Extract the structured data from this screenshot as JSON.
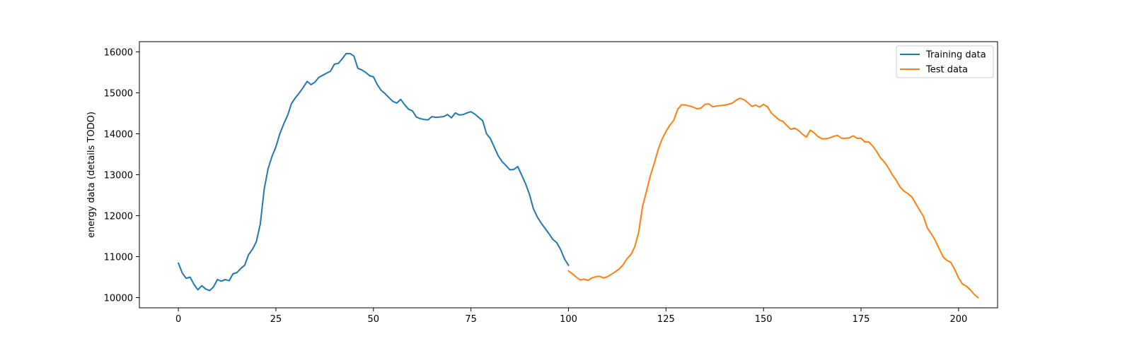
{
  "chart_data": {
    "type": "line",
    "title": "",
    "xlabel": "",
    "ylabel": "energy data (details TODO)",
    "xlim": [
      -10,
      210
    ],
    "ylim": [
      9750,
      16250
    ],
    "x_ticks": [
      0,
      25,
      50,
      75,
      100,
      125,
      150,
      175,
      200
    ],
    "y_ticks": [
      10000,
      11000,
      12000,
      13000,
      14000,
      15000,
      16000
    ],
    "grid": false,
    "legend_position": "top-right",
    "series": [
      {
        "name": "Training data",
        "color": "#1f77b4",
        "x_start": 0,
        "values": [
          10840,
          10600,
          10470,
          10500,
          10320,
          10190,
          10290,
          10210,
          10170,
          10260,
          10440,
          10400,
          10440,
          10410,
          10580,
          10610,
          10710,
          10790,
          11050,
          11180,
          11370,
          11800,
          12650,
          13150,
          13450,
          13680,
          14000,
          14240,
          14450,
          14740,
          14880,
          15000,
          15130,
          15280,
          15200,
          15260,
          15380,
          15430,
          15480,
          15530,
          15700,
          15720,
          15830,
          15960,
          15960,
          15900,
          15600,
          15560,
          15500,
          15420,
          15390,
          15200,
          15060,
          14980,
          14880,
          14790,
          14750,
          14840,
          14710,
          14600,
          14560,
          14410,
          14370,
          14350,
          14340,
          14420,
          14400,
          14410,
          14420,
          14470,
          14390,
          14510,
          14460,
          14470,
          14510,
          14540,
          14480,
          14400,
          14320,
          14000,
          13880,
          13670,
          13460,
          13320,
          13220,
          13120,
          13130,
          13200,
          12990,
          12780,
          12520,
          12170,
          11970,
          11820,
          11690,
          11560,
          11420,
          11340,
          11170,
          10940,
          10790
        ]
      },
      {
        "name": "Test data",
        "color": "#ff7f0e",
        "x_start": 100,
        "values": [
          10650,
          10580,
          10500,
          10430,
          10450,
          10420,
          10480,
          10510,
          10520,
          10480,
          10510,
          10570,
          10630,
          10700,
          10800,
          10950,
          11050,
          11240,
          11600,
          12230,
          12600,
          12980,
          13280,
          13620,
          13870,
          14060,
          14210,
          14330,
          14600,
          14710,
          14700,
          14680,
          14650,
          14610,
          14630,
          14720,
          14730,
          14660,
          14680,
          14690,
          14700,
          14720,
          14750,
          14820,
          14870,
          14830,
          14760,
          14670,
          14700,
          14650,
          14720,
          14660,
          14510,
          14420,
          14340,
          14300,
          14200,
          14110,
          14140,
          14080,
          13990,
          13920,
          14090,
          14020,
          13930,
          13880,
          13880,
          13900,
          13940,
          13960,
          13890,
          13890,
          13900,
          13950,
          13890,
          13890,
          13800,
          13800,
          13700,
          13570,
          13410,
          13310,
          13170,
          13000,
          12870,
          12700,
          12600,
          12540,
          12460,
          12300,
          12140,
          11980,
          11700,
          11560,
          11400,
          11200,
          11000,
          10910,
          10860,
          10690,
          10480,
          10330,
          10280,
          10190,
          10080,
          10000
        ]
      }
    ]
  }
}
